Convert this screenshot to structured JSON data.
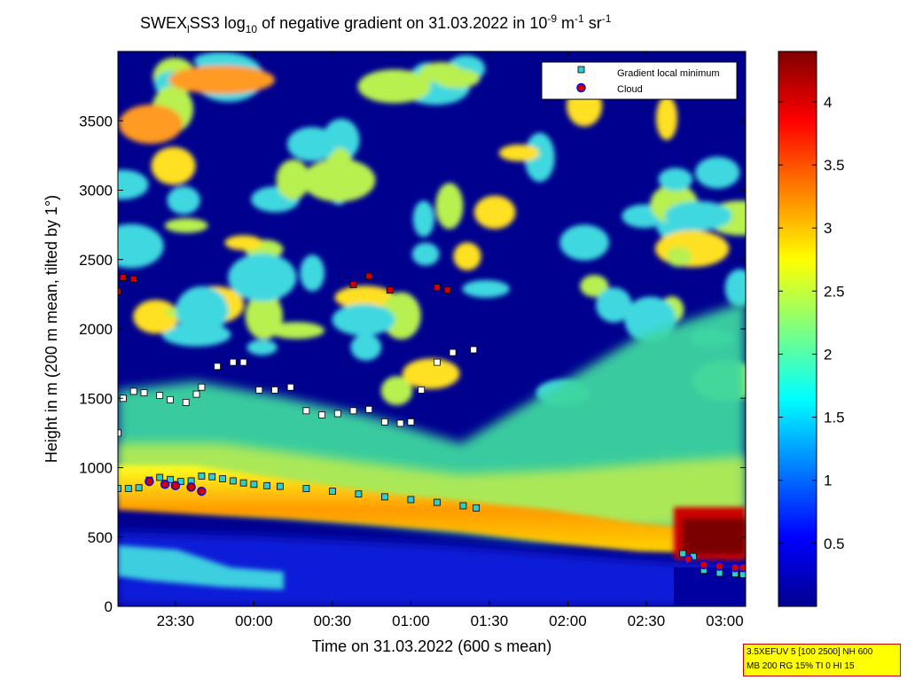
{
  "chart_data": {
    "type": "heatmap",
    "title": {
      "prefix": "SWEX",
      "sub1": "l",
      "mid": "SS3 log",
      "sub2": "10",
      "rest": " of negative gradient on 31.03.2022 in 10",
      "sup1": "-9",
      "unit1": " m",
      "sup2": "-1",
      "unit2": " sr",
      "sup3": "-1"
    },
    "xlabel": "Time on 31.03.2022 (600 s mean)",
    "ylabel": "Height in m (200 m mean, tilted by 1°)",
    "xlim": [
      "23:08",
      "03:08"
    ],
    "xtick_labels": [
      "23:30",
      "00:00",
      "00:30",
      "01:00",
      "01:30",
      "02:00",
      "02:30",
      "03:00"
    ],
    "ylim": [
      0,
      4000
    ],
    "yticks": [
      0,
      500,
      1000,
      1500,
      2000,
      2500,
      3000,
      3500
    ],
    "colorbar": {
      "range": [
        0,
        4.4
      ],
      "ticks": [
        0.5,
        1,
        1.5,
        2,
        2.5,
        3,
        3.5,
        4
      ],
      "tick_labels": [
        "0.5",
        "1",
        "1.5",
        "2",
        "2.5",
        "3",
        "3.5",
        "4"
      ],
      "colormap": "jet"
    },
    "legend": {
      "placement": "top-right",
      "entries": [
        {
          "label": "Gradient local minimum",
          "marker": "square",
          "color": "#33cccc"
        },
        {
          "label": "Cloud",
          "marker": "circle",
          "color": "#cc0000"
        }
      ]
    },
    "series": [
      {
        "name": "Gradient local minimum",
        "points": [
          [
            "23:08",
            850
          ],
          [
            "23:12",
            850
          ],
          [
            "23:16",
            855
          ],
          [
            "23:20",
            910
          ],
          [
            "23:24",
            930
          ],
          [
            "23:28",
            915
          ],
          [
            "23:32",
            900
          ],
          [
            "23:36",
            905
          ],
          [
            "23:40",
            940
          ],
          [
            "23:44",
            935
          ],
          [
            "23:48",
            920
          ],
          [
            "23:52",
            905
          ],
          [
            "23:56",
            890
          ],
          [
            "00:00",
            880
          ],
          [
            "00:05",
            870
          ],
          [
            "00:10",
            865
          ],
          [
            "00:20",
            850
          ],
          [
            "00:30",
            830
          ],
          [
            "00:40",
            810
          ],
          [
            "00:50",
            790
          ],
          [
            "01:00",
            770
          ],
          [
            "01:10",
            750
          ],
          [
            "01:20",
            725
          ],
          [
            "01:25",
            710
          ],
          [
            "23:08",
            1250
          ],
          [
            "23:10",
            1500
          ],
          [
            "23:14",
            1550
          ],
          [
            "23:18",
            1540
          ],
          [
            "23:24",
            1520
          ],
          [
            "23:28",
            1490
          ],
          [
            "23:34",
            1470
          ],
          [
            "23:38",
            1530
          ],
          [
            "23:40",
            1580
          ],
          [
            "23:46",
            1730
          ],
          [
            "23:52",
            1760
          ],
          [
            "23:56",
            1760
          ],
          [
            "00:02",
            1560
          ],
          [
            "00:08",
            1560
          ],
          [
            "00:14",
            1580
          ],
          [
            "00:20",
            1410
          ],
          [
            "00:26",
            1380
          ],
          [
            "00:32",
            1390
          ],
          [
            "00:38",
            1410
          ],
          [
            "00:44",
            1420
          ],
          [
            "00:50",
            1330
          ],
          [
            "00:56",
            1320
          ],
          [
            "01:00",
            1330
          ],
          [
            "01:04",
            1560
          ],
          [
            "01:10",
            1760
          ],
          [
            "01:16",
            1830
          ],
          [
            "01:24",
            1850
          ],
          [
            "23:08",
            2270
          ],
          [
            "23:10",
            2370
          ],
          [
            "23:14",
            2360
          ],
          [
            "00:38",
            2320
          ],
          [
            "00:44",
            2380
          ],
          [
            "00:52",
            2280
          ],
          [
            "01:10",
            2300
          ],
          [
            "01:14",
            2280
          ],
          [
            "02:44",
            380
          ],
          [
            "02:48",
            360
          ],
          [
            "02:52",
            260
          ],
          [
            "02:58",
            240
          ],
          [
            "03:04",
            235
          ],
          [
            "03:07",
            230
          ]
        ]
      },
      {
        "name": "Cloud",
        "points": [
          [
            "23:20",
            900
          ],
          [
            "23:26",
            880
          ],
          [
            "23:30",
            870
          ],
          [
            "23:36",
            860
          ],
          [
            "23:40",
            830
          ],
          [
            "02:46",
            340
          ],
          [
            "02:52",
            300
          ],
          [
            "02:58",
            290
          ],
          [
            "03:04",
            280
          ],
          [
            "03:07",
            280
          ]
        ]
      }
    ]
  },
  "infobox": {
    "line1": "3.5XEFUV 5 [100 2500] NH 600",
    "line2": "MB 200 RG 15% TI 0 HI 15"
  }
}
